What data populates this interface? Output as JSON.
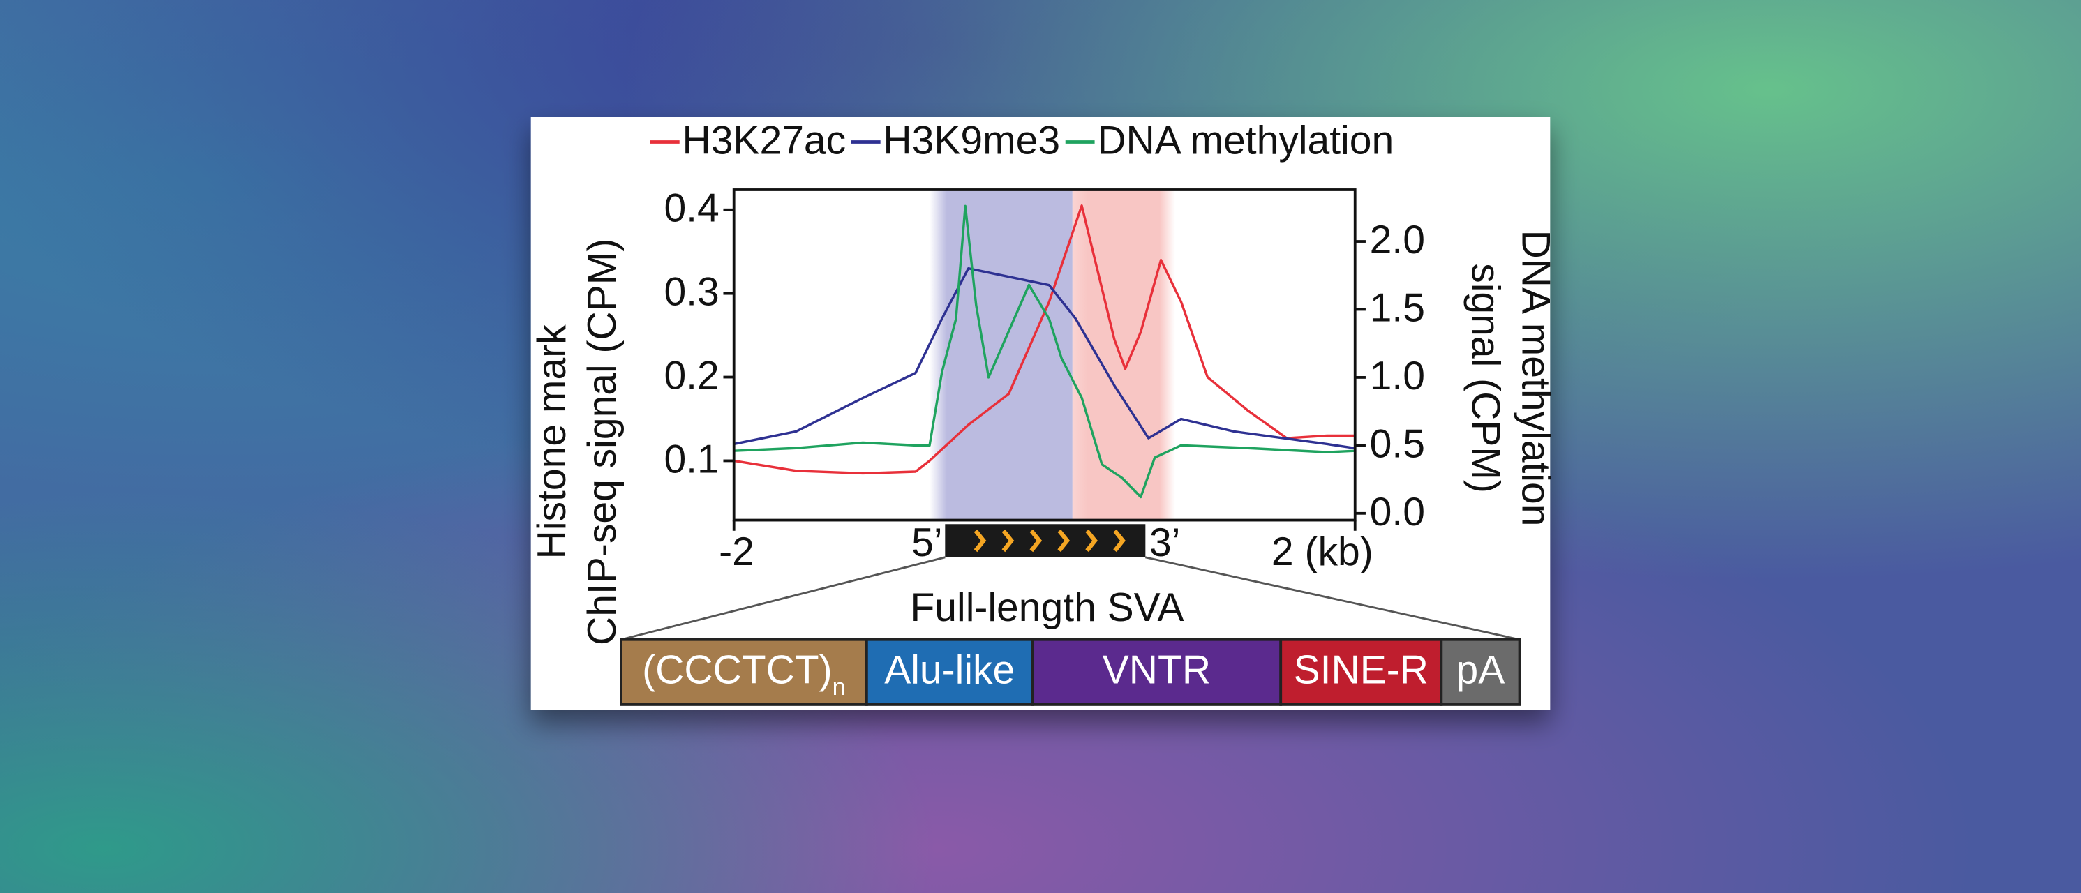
{
  "chart_data": {
    "type": "line",
    "xlim": [
      -2,
      2
    ],
    "xticks": [
      -2,
      {
        "value": 2,
        "label": "2 (kb)"
      }
    ],
    "ylim": [
      0.029,
      0.424
    ],
    "yticks": [
      0.1,
      0.2,
      0.3,
      0.4
    ],
    "y2lim": [
      -0.05,
      2.38
    ],
    "y2ticks": [
      {
        "value": 0,
        "label": "0.0"
      },
      0.5,
      {
        "value": 1,
        "label": "1.0"
      },
      1.5,
      {
        "value": 2,
        "label": "2.0"
      }
    ],
    "ylabel": [
      "Histone mark",
      "ChIP-seq signal (CPM)"
    ],
    "y2label": [
      "DNA methylation",
      "signal (CPM)"
    ],
    "legend": "top",
    "shaded_regions": [
      {
        "xlim": [
          -0.74,
          0.18
        ],
        "color": "#8e8ecc"
      },
      {
        "xlim": [
          0.18,
          0.84
        ],
        "color": "#f4a09c"
      }
    ],
    "element": {
      "xlim": [
        -0.64,
        0.65
      ],
      "label": "Full-length SVA",
      "left_label": "5’",
      "right_label": "3’"
    },
    "domains": [
      {
        "label": "(CCCTCT)",
        "subscript": "n",
        "color": "#a57c4c"
      },
      {
        "label": "Alu-like",
        "color": "#1f6db3"
      },
      {
        "label": "VNTR",
        "color": "#5b2a8e"
      },
      {
        "label": "SINE-R",
        "color": "#bf1e2e"
      },
      {
        "label": "pA",
        "color": "#6b6b6b"
      }
    ],
    "series": [
      {
        "name": "H3K27ac",
        "color": "#e8303a",
        "axis": "y",
        "x": [
          -2,
          -1.6,
          -1.17,
          -0.83,
          -0.74,
          -0.49,
          -0.23,
          0.03,
          0.24,
          0.45,
          0.52,
          0.62,
          0.75,
          0.88,
          1.05,
          1.31,
          1.56,
          1.82,
          2.0
        ],
        "values": [
          0.1,
          0.088,
          0.085,
          0.087,
          0.1,
          0.143,
          0.18,
          0.29,
          0.405,
          0.245,
          0.21,
          0.254,
          0.34,
          0.29,
          0.2,
          0.16,
          0.127,
          0.13,
          0.13
        ]
      },
      {
        "name": "H3K9me3",
        "color": "#2e3192",
        "axis": "y",
        "x": [
          -2,
          -1.6,
          -1.17,
          -0.83,
          -0.66,
          -0.49,
          -0.23,
          0.03,
          0.2,
          0.45,
          0.67,
          0.88,
          1.22,
          1.82,
          2.0
        ],
        "values": [
          0.12,
          0.135,
          0.175,
          0.205,
          0.27,
          0.33,
          0.32,
          0.31,
          0.27,
          0.19,
          0.127,
          0.15,
          0.135,
          0.12,
          0.115
        ]
      },
      {
        "name": "DNA methylation",
        "color": "#1fa35f",
        "axis": "y2",
        "x": [
          -2,
          -1.6,
          -1.17,
          -0.83,
          -0.74,
          -0.66,
          -0.57,
          -0.51,
          -0.44,
          -0.36,
          -0.23,
          -0.1,
          0.03,
          0.11,
          0.24,
          0.37,
          0.5,
          0.62,
          0.71,
          0.88,
          1.31,
          1.82,
          2.0
        ],
        "values": [
          0.46,
          0.48,
          0.52,
          0.5,
          0.5,
          1.04,
          1.43,
          2.26,
          1.53,
          1.0,
          1.34,
          1.68,
          1.43,
          1.14,
          0.85,
          0.36,
          0.26,
          0.12,
          0.41,
          0.5,
          0.48,
          0.45,
          0.46
        ]
      }
    ]
  }
}
